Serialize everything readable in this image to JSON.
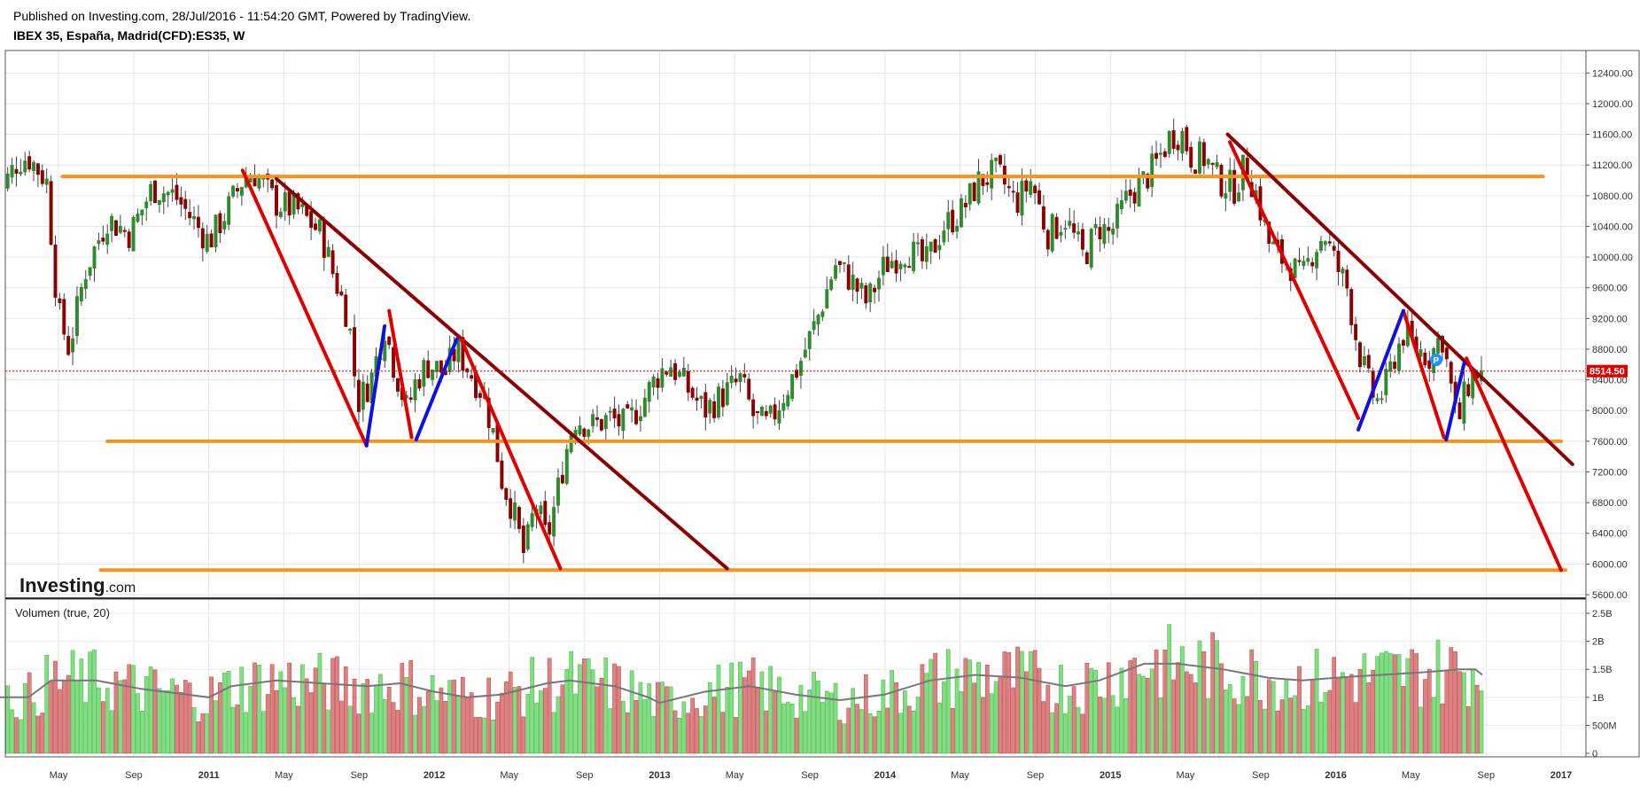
{
  "header": {
    "published": "Published on Investing.com, 28/Jul/2016 - 11:54:20 GMT, Powered by TradingView.",
    "title": "IBEX 35, España, Madrid(CFD):ES35, W"
  },
  "logo": {
    "bold": "Investing",
    "suffix": ".com"
  },
  "current_price": {
    "label": "8514.50",
    "value": 8514.5,
    "color": "#e00000"
  },
  "p_marker": "P",
  "chart_data": [
    {
      "type": "candlestick",
      "title": "IBEX 35, España, Madrid(CFD):ES35, W",
      "period": "W",
      "x_tick_labels": [
        "May",
        "Sep",
        "2011",
        "May",
        "Sep",
        "2012",
        "May",
        "Sep",
        "2013",
        "May",
        "Sep",
        "2014",
        "May",
        "Sep",
        "2015",
        "May",
        "Sep",
        "2016",
        "May",
        "Sep",
        "2017"
      ],
      "ylim": [
        5600,
        12600
      ],
      "y_ticks": [
        5600,
        6000,
        6400,
        6800,
        7200,
        7600,
        8000,
        8400,
        8800,
        9200,
        9600,
        10000,
        10400,
        10800,
        11200,
        11600,
        12000,
        12400
      ],
      "y_tick_labels": [
        "5600.00",
        "6000.00",
        "6400.00",
        "6800.00",
        "7200.00",
        "7600.00",
        "8000.00",
        "8400.00",
        "8800.00",
        "9200.00",
        "9600.00",
        "10000.00",
        "10400.00",
        "10800.00",
        "11200.00",
        "11600.00",
        "12000.00",
        "12400.00"
      ],
      "grid": true,
      "up_color": "#2e8b2e",
      "down_color": "#8b0000",
      "close_path": [
        [
          2010.05,
          10700
        ],
        [
          2010.15,
          11250
        ],
        [
          2010.2,
          11300
        ],
        [
          2010.28,
          11000
        ],
        [
          2010.33,
          9300
        ],
        [
          2010.38,
          8800
        ],
        [
          2010.45,
          9800
        ],
        [
          2010.55,
          10500
        ],
        [
          2010.65,
          10300
        ],
        [
          2010.75,
          10900
        ],
        [
          2010.85,
          10800
        ],
        [
          2010.95,
          10400
        ],
        [
          2011.0,
          10200
        ],
        [
          2011.08,
          10600
        ],
        [
          2011.15,
          11000
        ],
        [
          2011.2,
          11100
        ],
        [
          2011.3,
          10700
        ],
        [
          2011.4,
          10600
        ],
        [
          2011.5,
          10300
        ],
        [
          2011.55,
          9800
        ],
        [
          2011.62,
          9200
        ],
        [
          2011.66,
          8100
        ],
        [
          2011.72,
          8400
        ],
        [
          2011.78,
          9100
        ],
        [
          2011.82,
          8600
        ],
        [
          2011.88,
          8000
        ],
        [
          2011.92,
          8400
        ],
        [
          2011.97,
          8600
        ],
        [
          2012.05,
          8500
        ],
        [
          2012.1,
          8800
        ],
        [
          2012.16,
          8500
        ],
        [
          2012.22,
          8200
        ],
        [
          2012.27,
          7600
        ],
        [
          2012.3,
          7100
        ],
        [
          2012.35,
          6700
        ],
        [
          2012.4,
          6100
        ],
        [
          2012.45,
          6800
        ],
        [
          2012.5,
          6300
        ],
        [
          2012.53,
          6700
        ],
        [
          2012.58,
          7400
        ],
        [
          2012.62,
          7900
        ],
        [
          2012.7,
          7800
        ],
        [
          2012.78,
          7900
        ],
        [
          2012.85,
          7800
        ],
        [
          2012.92,
          8100
        ],
        [
          2013.0,
          8500
        ],
        [
          2013.05,
          8600
        ],
        [
          2013.12,
          8300
        ],
        [
          2013.2,
          8000
        ],
        [
          2013.28,
          8200
        ],
        [
          2013.36,
          8400
        ],
        [
          2013.42,
          7900
        ],
        [
          2013.48,
          7800
        ],
        [
          2013.55,
          8200
        ],
        [
          2013.62,
          8600
        ],
        [
          2013.7,
          9200
        ],
        [
          2013.78,
          9900
        ],
        [
          2013.85,
          9700
        ],
        [
          2013.92,
          9400
        ],
        [
          2014.0,
          9900
        ],
        [
          2014.1,
          10100
        ],
        [
          2014.18,
          9900
        ],
        [
          2014.26,
          10400
        ],
        [
          2014.34,
          10600
        ],
        [
          2014.42,
          11000
        ],
        [
          2014.5,
          11100
        ],
        [
          2014.58,
          10700
        ],
        [
          2014.65,
          11000
        ],
        [
          2014.72,
          10300
        ],
        [
          2014.8,
          10500
        ],
        [
          2014.88,
          10000
        ],
        [
          2014.95,
          10400
        ],
        [
          2015.0,
          10300
        ],
        [
          2015.08,
          10800
        ],
        [
          2015.15,
          11000
        ],
        [
          2015.2,
          11200
        ],
        [
          2015.27,
          11600
        ],
        [
          2015.32,
          11600
        ],
        [
          2015.36,
          11300
        ],
        [
          2015.42,
          11300
        ],
        [
          2015.48,
          11000
        ],
        [
          2015.55,
          10900
        ],
        [
          2015.6,
          11200
        ],
        [
          2015.65,
          10800
        ],
        [
          2015.7,
          10200
        ],
        [
          2015.75,
          10000
        ],
        [
          2015.8,
          9900
        ],
        [
          2015.85,
          9700
        ],
        [
          2015.9,
          10100
        ],
        [
          2015.95,
          10300
        ],
        [
          2016.0,
          9900
        ],
        [
          2016.05,
          9600
        ],
        [
          2016.1,
          8800
        ],
        [
          2016.14,
          8400
        ],
        [
          2016.18,
          8100
        ],
        [
          2016.22,
          8300
        ],
        [
          2016.26,
          8700
        ],
        [
          2016.3,
          9000
        ],
        [
          2016.36,
          8800
        ],
        [
          2016.42,
          8700
        ],
        [
          2016.47,
          9000
        ],
        [
          2016.5,
          8500
        ],
        [
          2016.54,
          7800
        ],
        [
          2016.58,
          8300
        ],
        [
          2016.62,
          8500
        ],
        [
          2016.65,
          8514.5
        ]
      ],
      "volume": {
        "title": "Volumen (true, 20)",
        "ylim": [
          0,
          2500000000
        ],
        "y_ticks": [
          0,
          500000000,
          1000000000,
          1500000000,
          2000000000,
          2500000000
        ],
        "y_tick_labels": [
          "0",
          "500M",
          "1B",
          "1.5B",
          "2B",
          "2.5B"
        ],
        "up_color": "#7fe07f",
        "down_color": "#e08080",
        "ma_color": "#777777",
        "ma_path": [
          [
            2010.05,
            1000000000
          ],
          [
            2010.2,
            1000000000
          ],
          [
            2010.3,
            1300000000
          ],
          [
            2010.5,
            1300000000
          ],
          [
            2010.7,
            1150000000
          ],
          [
            2010.9,
            1050000000
          ],
          [
            2011.0,
            1000000000
          ],
          [
            2011.1,
            1200000000
          ],
          [
            2011.3,
            1300000000
          ],
          [
            2011.5,
            1250000000
          ],
          [
            2011.7,
            1200000000
          ],
          [
            2011.85,
            1250000000
          ],
          [
            2012.0,
            1100000000
          ],
          [
            2012.15,
            1000000000
          ],
          [
            2012.3,
            1050000000
          ],
          [
            2012.5,
            1250000000
          ],
          [
            2012.6,
            1300000000
          ],
          [
            2012.8,
            1200000000
          ],
          [
            2012.95,
            1000000000
          ],
          [
            2013.0,
            900000000
          ],
          [
            2013.2,
            1100000000
          ],
          [
            2013.4,
            1200000000
          ],
          [
            2013.6,
            1050000000
          ],
          [
            2013.8,
            950000000
          ],
          [
            2014.0,
            1050000000
          ],
          [
            2014.2,
            1300000000
          ],
          [
            2014.4,
            1400000000
          ],
          [
            2014.6,
            1350000000
          ],
          [
            2014.8,
            1200000000
          ],
          [
            2014.95,
            1300000000
          ],
          [
            2015.05,
            1450000000
          ],
          [
            2015.15,
            1600000000
          ],
          [
            2015.3,
            1600000000
          ],
          [
            2015.5,
            1500000000
          ],
          [
            2015.7,
            1350000000
          ],
          [
            2015.85,
            1300000000
          ],
          [
            2016.0,
            1350000000
          ],
          [
            2016.2,
            1400000000
          ],
          [
            2016.4,
            1450000000
          ],
          [
            2016.55,
            1500000000
          ],
          [
            2016.62,
            1500000000
          ],
          [
            2016.65,
            1400000000
          ]
        ]
      }
    }
  ],
  "colors": {
    "support": "#f7941d",
    "downtrend": "#8b0000",
    "leg_down": "#e00000",
    "leg_up": "#1010e0",
    "background": "#ffffff"
  }
}
